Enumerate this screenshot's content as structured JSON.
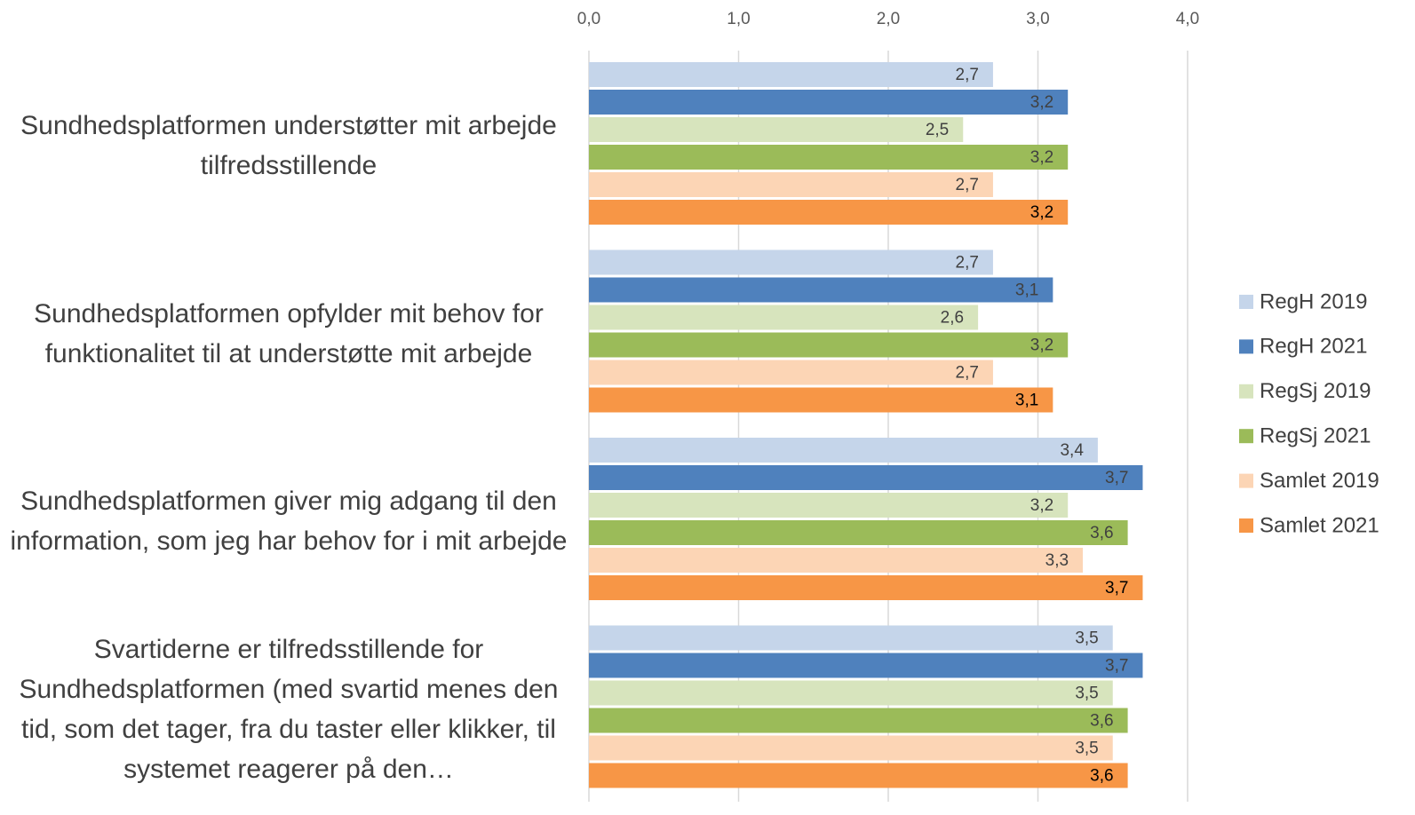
{
  "chart_data": {
    "type": "hbar",
    "categories": [
      "Sundhedsplatformen understøtter mit arbejde tilfredsstillende",
      "Sundhedsplatformen opfylder mit behov for funktionalitet til at understøtte mit arbejde",
      "Sundhedsplatformen giver mig adgang til den information, som jeg har behov for i mit arbejde",
      "Svartiderne er tilfredsstillende for Sundhedsplatformen (med svartid menes den tid, som det tager, fra du taster eller klikker, til systemet reagerer på den…"
    ],
    "series": [
      {
        "name": "RegH 2019",
        "color": "#c5d5ea",
        "values": [
          2.7,
          2.7,
          3.4,
          3.5
        ],
        "value_labels": [
          "2,7",
          "2,7",
          "3,4",
          "3,5"
        ]
      },
      {
        "name": "RegH 2021",
        "color": "#4f81bd",
        "values": [
          3.2,
          3.1,
          3.7,
          3.7
        ],
        "value_labels": [
          "3,2",
          "3,1",
          "3,7",
          "3,7"
        ]
      },
      {
        "name": "RegSj 2019",
        "color": "#d7e4bd",
        "values": [
          2.5,
          2.6,
          3.2,
          3.5
        ],
        "value_labels": [
          "2,5",
          "2,6",
          "3,2",
          "3,5"
        ]
      },
      {
        "name": "RegSj 2021",
        "color": "#9bbb59",
        "values": [
          3.2,
          3.2,
          3.6,
          3.6
        ],
        "value_labels": [
          "3,2",
          "3,2",
          "3,6",
          "3,6"
        ]
      },
      {
        "name": "Samlet 2019",
        "color": "#fcd5b5",
        "values": [
          2.7,
          2.7,
          3.3,
          3.5
        ],
        "value_labels": [
          "2,7",
          "2,7",
          "3,3",
          "3,5"
        ]
      },
      {
        "name": "Samlet 2021",
        "color": "#f79646",
        "values": [
          3.2,
          3.1,
          3.7,
          3.6
        ],
        "value_labels": [
          "3,2",
          "3,1",
          "3,7",
          "3,6"
        ]
      }
    ],
    "xlim": [
      0,
      4
    ],
    "xticks": [
      {
        "value": 0,
        "label": "0,0"
      },
      {
        "value": 1,
        "label": "1,0"
      },
      {
        "value": 2,
        "label": "2,0"
      },
      {
        "value": 3,
        "label": "3,0"
      },
      {
        "value": 4,
        "label": "4,0"
      }
    ],
    "grid": true,
    "legend": "right"
  }
}
